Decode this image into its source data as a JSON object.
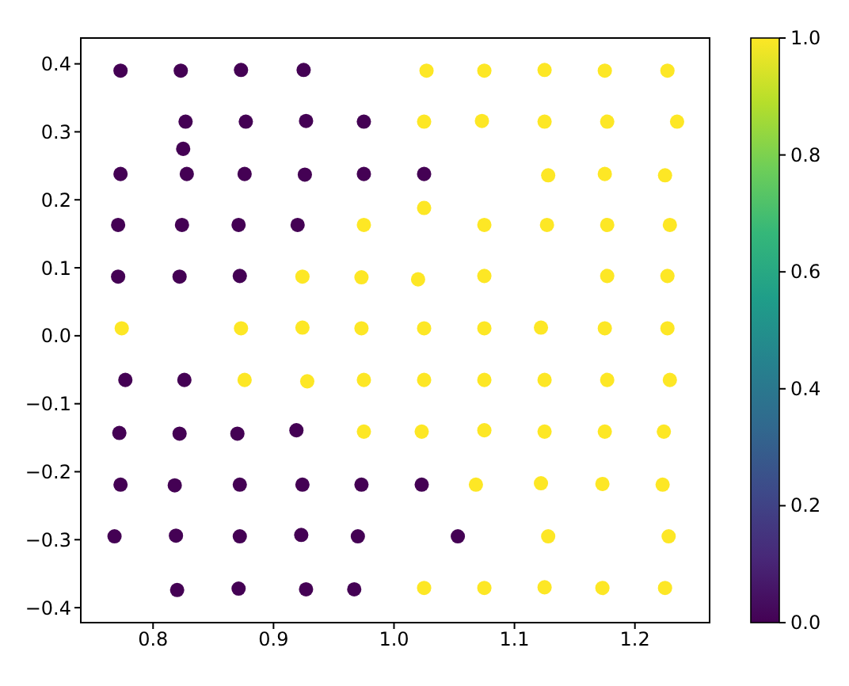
{
  "chart_data": {
    "type": "scatter",
    "marker": "circle",
    "xlim": [
      0.74,
      1.262
    ],
    "xticks": [
      0.8,
      0.9,
      {
        "value": 1.0,
        "label": "1.0"
      },
      1.1,
      1.2
    ],
    "ylim": [
      -0.422,
      0.438
    ],
    "yticks": [
      {
        "value": -0.4,
        "label": "−0.4"
      },
      {
        "value": -0.3,
        "label": "−0.3"
      },
      {
        "value": -0.2,
        "label": "−0.2"
      },
      {
        "value": -0.1,
        "label": "−0.1"
      },
      {
        "value": 0,
        "label": "0.0"
      },
      0.1,
      0.2,
      0.3,
      0.4
    ],
    "clim": [
      0,
      1
    ],
    "cticks": [
      {
        "value": 0,
        "label": "0.0"
      },
      0.2,
      0.4,
      0.6,
      0.8,
      {
        "value": 1,
        "label": "1.0"
      }
    ],
    "series": [
      {
        "x": [
          0.773,
          0.823,
          0.873,
          0.925,
          1.027,
          1.075,
          1.125,
          1.175,
          1.227,
          0.827,
          0.877,
          0.927,
          0.975,
          1.025,
          1.073,
          1.125,
          1.177,
          1.235,
          0.825,
          0.773,
          0.828,
          0.876,
          0.926,
          0.975,
          1.025,
          1.128,
          1.175,
          1.225,
          1.025,
          0.771,
          0.824,
          0.871,
          0.92,
          0.975,
          1.075,
          1.127,
          1.177,
          1.229,
          0.771,
          0.822,
          0.872,
          0.924,
          0.973,
          1.02,
          1.075,
          1.177,
          1.227,
          0.774,
          0.873,
          0.924,
          0.973,
          1.025,
          1.075,
          1.122,
          1.175,
          1.227,
          0.777,
          0.826,
          0.876,
          0.928,
          0.975,
          1.025,
          1.075,
          1.125,
          1.177,
          1.229,
          0.772,
          0.822,
          0.87,
          0.919,
          0.975,
          1.023,
          1.075,
          1.125,
          1.175,
          1.224,
          0.773,
          0.818,
          0.872,
          0.924,
          0.973,
          1.023,
          1.068,
          1.122,
          1.173,
          1.223,
          0.768,
          0.819,
          0.872,
          0.923,
          0.97,
          1.053,
          1.128,
          1.228,
          0.82,
          0.871,
          0.927,
          0.967,
          1.025,
          1.075,
          1.125,
          1.173,
          1.225
        ],
        "values": [
          0.39,
          0.39,
          0.391,
          0.391,
          0.39,
          0.39,
          0.391,
          0.39,
          0.39,
          0.315,
          0.315,
          0.316,
          0.315,
          0.315,
          0.316,
          0.315,
          0.315,
          0.315,
          0.275,
          0.238,
          0.238,
          0.238,
          0.237,
          0.238,
          0.238,
          0.236,
          0.238,
          0.236,
          0.188,
          0.163,
          0.163,
          0.163,
          0.163,
          0.163,
          0.163,
          0.163,
          0.163,
          0.163,
          0.087,
          0.087,
          0.088,
          0.087,
          0.086,
          0.083,
          0.088,
          0.088,
          0.088,
          0.011,
          0.011,
          0.012,
          0.011,
          0.011,
          0.011,
          0.012,
          0.011,
          0.011,
          -0.065,
          -0.065,
          -0.065,
          -0.067,
          -0.065,
          -0.065,
          -0.065,
          -0.065,
          -0.065,
          -0.065,
          -0.143,
          -0.144,
          -0.144,
          -0.139,
          -0.141,
          -0.141,
          -0.139,
          -0.141,
          -0.141,
          -0.141,
          -0.219,
          -0.22,
          -0.219,
          -0.219,
          -0.219,
          -0.219,
          -0.219,
          -0.217,
          -0.218,
          -0.219,
          -0.295,
          -0.294,
          -0.295,
          -0.293,
          -0.295,
          -0.295,
          -0.295,
          -0.295,
          -0.374,
          -0.372,
          -0.373,
          -0.373,
          -0.371,
          -0.371,
          -0.37,
          -0.371,
          -0.371
        ],
        "cvalues": [
          0,
          0,
          0,
          0,
          1,
          1,
          1,
          1,
          1,
          0,
          0,
          0,
          0,
          1,
          1,
          1,
          1,
          1,
          0,
          0,
          0,
          0,
          0,
          0,
          0,
          1,
          1,
          1,
          1,
          0,
          0,
          0,
          0,
          1,
          1,
          1,
          1,
          1,
          0,
          0,
          0,
          1,
          1,
          1,
          1,
          1,
          1,
          1,
          1,
          1,
          1,
          1,
          1,
          1,
          1,
          1,
          0,
          0,
          1,
          1,
          1,
          1,
          1,
          1,
          1,
          1,
          0,
          0,
          0,
          0,
          1,
          1,
          1,
          1,
          1,
          1,
          0,
          0,
          0,
          0,
          0,
          0,
          1,
          1,
          1,
          1,
          0,
          0,
          0,
          0,
          0,
          0,
          1,
          1,
          0,
          0,
          0,
          0,
          1,
          1,
          1,
          1,
          1
        ]
      }
    ]
  }
}
